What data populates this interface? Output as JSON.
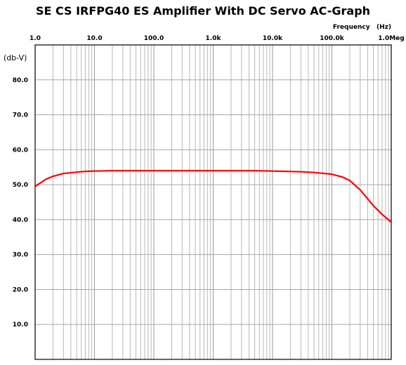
{
  "chart_data": {
    "type": "line",
    "title": "SE CS IRFPG40 ES Amplifier With DC Servo AC-Graph",
    "xlabel": "Frequency   (Hz)",
    "ylabel": "(db-V)",
    "x_scale": "log",
    "xlim": [
      1,
      1000000
    ],
    "ylim": [
      0,
      90
    ],
    "x_ticks": [
      {
        "value": 1,
        "label": "1.0"
      },
      {
        "value": 10,
        "label": "10.0"
      },
      {
        "value": 100,
        "label": "100.0"
      },
      {
        "value": 1000,
        "label": "1.0k"
      },
      {
        "value": 10000,
        "label": "10.0k"
      },
      {
        "value": 100000,
        "label": "100.0k"
      },
      {
        "value": 1000000,
        "label": "1.0Meg"
      }
    ],
    "y_ticks": [
      {
        "value": 10,
        "label": "10.0"
      },
      {
        "value": 20,
        "label": "20.0"
      },
      {
        "value": 30,
        "label": "30.0"
      },
      {
        "value": 40,
        "label": "40.0"
      },
      {
        "value": 50,
        "label": "50.0"
      },
      {
        "value": 60,
        "label": "60.0"
      },
      {
        "value": 70,
        "label": "70.0"
      },
      {
        "value": 80,
        "label": "80.0"
      }
    ],
    "grid": true,
    "line_color": "#ff0000",
    "series": [
      {
        "x": [
          1,
          1.5,
          2,
          3,
          5,
          7,
          10,
          20,
          50,
          100,
          1000,
          5000,
          10000,
          30000,
          50000,
          100000,
          150000,
          200000,
          300000,
          500000,
          700000,
          1000000
        ],
        "values": [
          49.5,
          51.5,
          52.4,
          53.2,
          53.6,
          53.8,
          53.9,
          54.0,
          54.0,
          54.0,
          54.0,
          54.0,
          53.9,
          53.7,
          53.5,
          53.0,
          52.2,
          51.2,
          48.5,
          44.0,
          41.5,
          39.3
        ]
      }
    ]
  }
}
